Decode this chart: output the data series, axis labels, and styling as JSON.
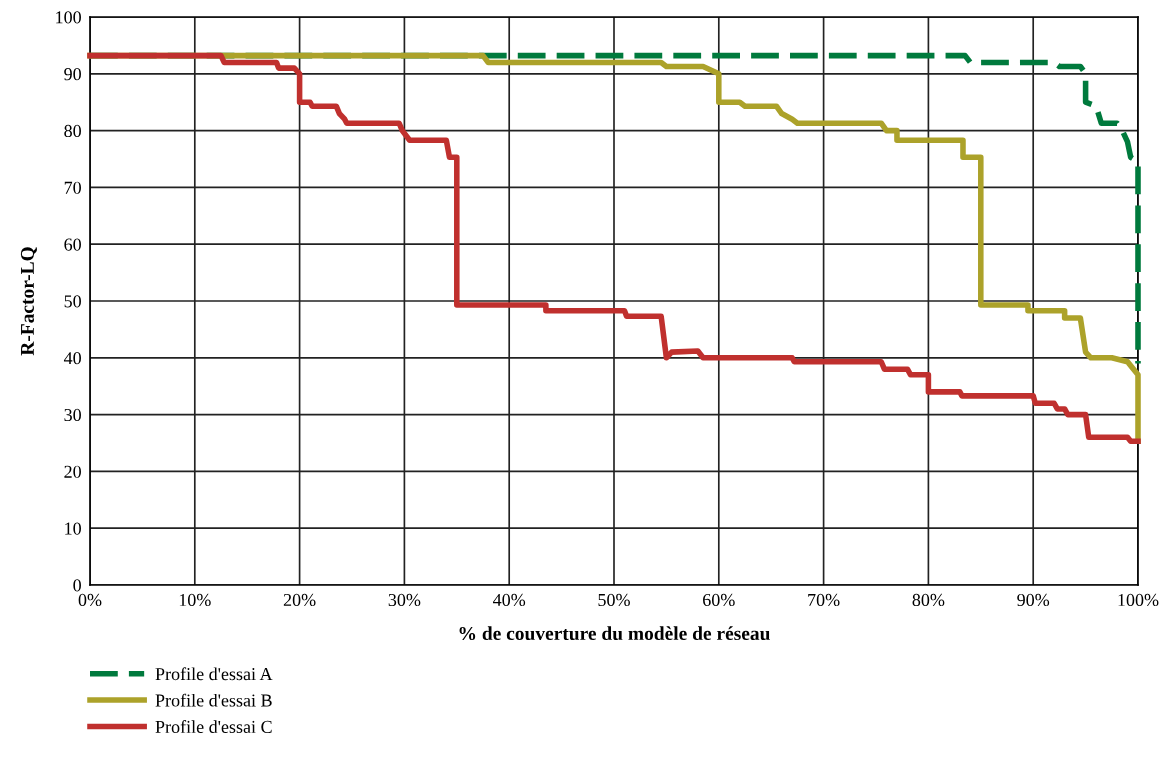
{
  "chart_data": {
    "type": "line",
    "xlabel": "% de couverture du modèle de réseau",
    "ylabel": "R-Factor-LQ",
    "xlim": [
      0,
      100
    ],
    "ylim": [
      0,
      100
    ],
    "xticks": [
      {
        "value": 0,
        "label": "0%"
      },
      {
        "value": 10,
        "label": "10%"
      },
      {
        "value": 20,
        "label": "20%"
      },
      {
        "value": 30,
        "label": "30%"
      },
      {
        "value": 40,
        "label": "40%"
      },
      {
        "value": 50,
        "label": "50%"
      },
      {
        "value": 60,
        "label": "60%"
      },
      {
        "value": 70,
        "label": "70%"
      },
      {
        "value": 80,
        "label": "80%"
      },
      {
        "value": 90,
        "label": "90%"
      },
      {
        "value": 100,
        "label": "100%"
      }
    ],
    "yticks": [
      0,
      10,
      20,
      30,
      40,
      50,
      60,
      70,
      80,
      90,
      100
    ],
    "grid": true,
    "legend": "bottom left",
    "marker": "none",
    "series": [
      {
        "name": "Profile d'essai A",
        "color": "#007a3d",
        "line_style": "dashed",
        "x": [
          0,
          83.5,
          84,
          92,
          92.5,
          94.5,
          95,
          95,
          96,
          96.5,
          98,
          98.5,
          99,
          99.3,
          100,
          100
        ],
        "values": [
          93.2,
          93.2,
          92,
          92,
          91.3,
          91.3,
          90,
          85,
          84.3,
          81.3,
          81.3,
          80,
          78,
          75.3,
          74.5,
          39
        ]
      },
      {
        "name": "Profile d'essai B",
        "color": "#aca22a",
        "line_style": "solid",
        "x": [
          0,
          37.5,
          38,
          54.5,
          55,
          58.5,
          60,
          60,
          62,
          62.5,
          65.5,
          66,
          67,
          67.5,
          75.5,
          76,
          77,
          77,
          83.3,
          83.3,
          85,
          85,
          89.5,
          89.5,
          93,
          93,
          94.5,
          95,
          95.5,
          97.5,
          99,
          100,
          100
        ],
        "values": [
          93.2,
          93.2,
          92,
          92,
          91.3,
          91.3,
          90,
          85,
          85,
          84.3,
          84.3,
          83,
          82,
          81.3,
          81.3,
          80,
          80,
          78.3,
          78.3,
          75.3,
          75.3,
          49.3,
          49.3,
          48.3,
          48.3,
          47,
          47,
          41,
          40,
          40,
          39.3,
          37,
          25.3
        ]
      },
      {
        "name": "Profile d'essai C",
        "color": "#c0302e",
        "line_style": "solid",
        "x": [
          0,
          12.5,
          12.8,
          17.8,
          18,
          19.5,
          20,
          20,
          21,
          21.2,
          23.5,
          23.8,
          24.3,
          24.5,
          29.5,
          29.8,
          30.5,
          30.8,
          34,
          34.3,
          35,
          35,
          43.5,
          43.5,
          51,
          51.2,
          54.5,
          55,
          55.5,
          58,
          58.5,
          67,
          67.2,
          75.5,
          75.8,
          78,
          78.3,
          80,
          80,
          83,
          83.2,
          90,
          90.2,
          92,
          92.3,
          93,
          93.3,
          95,
          95.3,
          99,
          99.3,
          100
        ],
        "values": [
          93.2,
          93.2,
          92,
          92,
          91,
          91,
          90,
          85,
          85,
          84.3,
          84.3,
          83,
          82,
          81.3,
          81.3,
          80,
          78.3,
          78.3,
          78.3,
          75.3,
          75.3,
          49.3,
          49.3,
          48.3,
          48.3,
          47.3,
          47.3,
          40,
          41,
          41.2,
          40,
          40,
          39.3,
          39.3,
          38,
          38,
          37,
          37,
          34,
          34,
          33.3,
          33.3,
          32,
          32,
          31,
          31,
          30,
          30,
          26,
          26,
          25.3,
          25.3
        ]
      }
    ]
  }
}
